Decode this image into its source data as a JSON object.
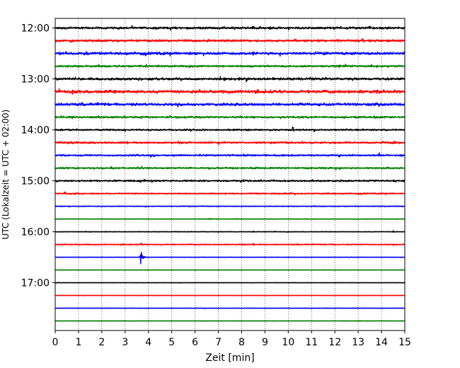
{
  "chart_data": {
    "type": "line",
    "title": "",
    "xlabel": "Zeit  [min]",
    "ylabel": "UTC (Lokalzeit = UTC + 02:00)",
    "xlim": [
      0,
      15
    ],
    "x_ticks": [
      "0",
      "1",
      "2",
      "3",
      "4",
      "5",
      "6",
      "7",
      "8",
      "9",
      "10",
      "11",
      "12",
      "13",
      "14",
      "15"
    ],
    "y_tick_labels": [
      "12:00",
      "13:00",
      "14:00",
      "15:00",
      "16:00",
      "17:00"
    ],
    "grid": "vertical dotted at each minute",
    "trace_interval_minutes": 15,
    "colors": [
      "#000000",
      "#ff0000",
      "#0000ff",
      "#008000"
    ],
    "series": [
      {
        "start": "12:00",
        "color": "#000000",
        "noise": 0.2,
        "events": [
          {
            "t": 8.5,
            "amp": 0.45
          },
          {
            "t": 13.3,
            "amp": 0.15
          }
        ]
      },
      {
        "start": "12:15",
        "color": "#ff0000",
        "noise": 0.2,
        "events": [
          {
            "t": 13.2,
            "amp": 0.4
          }
        ]
      },
      {
        "start": "12:30",
        "color": "#0000ff",
        "noise": 0.25,
        "events": [
          {
            "t": 8.5,
            "amp": 0.3
          }
        ]
      },
      {
        "start": "12:45",
        "color": "#008000",
        "noise": 0.18,
        "events": [
          {
            "t": 3.9,
            "amp": 0.4
          },
          {
            "t": 12.2,
            "amp": 0.25
          },
          {
            "t": 13.8,
            "amp": 0.3
          }
        ]
      },
      {
        "start": "13:00",
        "color": "#000000",
        "noise": 0.22,
        "events": [
          {
            "t": 8.2,
            "amp": 0.45
          }
        ]
      },
      {
        "start": "13:15",
        "color": "#ff0000",
        "noise": 0.28,
        "events": [
          {
            "t": 3.3,
            "amp": 0.3
          },
          {
            "t": 13.1,
            "amp": 0.3
          },
          {
            "t": 14.1,
            "amp": 0.3
          }
        ]
      },
      {
        "start": "13:30",
        "color": "#0000ff",
        "noise": 0.25,
        "events": [
          {
            "t": 6.6,
            "amp": 0.3
          },
          {
            "t": 8.7,
            "amp": 0.4
          },
          {
            "t": 13.8,
            "amp": 0.2
          }
        ]
      },
      {
        "start": "13:45",
        "color": "#008000",
        "noise": 0.18,
        "events": [
          {
            "t": 4.9,
            "amp": 0.4
          },
          {
            "t": 8.5,
            "amp": 0.3
          },
          {
            "t": 13.7,
            "amp": 0.3
          }
        ]
      },
      {
        "start": "14:00",
        "color": "#000000",
        "noise": 0.16,
        "events": [
          {
            "t": 10.2,
            "amp": 0.45
          },
          {
            "t": 12.5,
            "amp": 0.2
          }
        ]
      },
      {
        "start": "14:15",
        "color": "#ff0000",
        "noise": 0.18,
        "events": [
          {
            "t": 3.1,
            "amp": 0.3
          },
          {
            "t": 5.3,
            "amp": 0.25
          },
          {
            "t": 14.0,
            "amp": 0.45
          }
        ]
      },
      {
        "start": "14:30",
        "color": "#0000ff",
        "noise": 0.16,
        "events": [
          {
            "t": 8.5,
            "amp": 0.2
          },
          {
            "t": 13.9,
            "amp": 0.4
          }
        ]
      },
      {
        "start": "14:45",
        "color": "#008000",
        "noise": 0.16,
        "events": [
          {
            "t": 9.9,
            "amp": 0.2
          },
          {
            "t": 11.6,
            "amp": 0.25
          }
        ]
      },
      {
        "start": "15:00",
        "color": "#000000",
        "noise": 0.16,
        "events": [
          {
            "t": 1.8,
            "amp": 0.15
          },
          {
            "t": 13.7,
            "amp": 0.2
          }
        ]
      },
      {
        "start": "15:15",
        "color": "#ff0000",
        "noise": 0.12,
        "events": [
          {
            "t": 0.4,
            "amp": 0.4
          },
          {
            "t": 10.1,
            "amp": 0.2
          },
          {
            "t": 11.7,
            "amp": 0.2
          }
        ]
      },
      {
        "start": "15:30",
        "color": "#0000ff",
        "noise": 0.08,
        "events": [
          {
            "t": 6.3,
            "amp": 0.15
          },
          {
            "t": 8.2,
            "amp": 0.1
          }
        ]
      },
      {
        "start": "15:45",
        "color": "#008000",
        "noise": 0.06,
        "events": [
          {
            "t": 6.6,
            "amp": 0.1
          }
        ]
      },
      {
        "start": "16:00",
        "color": "#000000",
        "noise": 0.06,
        "events": [
          {
            "t": 8.5,
            "amp": 0.1
          },
          {
            "t": 14.5,
            "amp": 0.2
          }
        ]
      },
      {
        "start": "16:15",
        "color": "#ff0000",
        "noise": 0.1,
        "events": [
          {
            "t": 3.7,
            "amp": 0.25
          },
          {
            "t": 8.5,
            "amp": 0.2
          }
        ]
      },
      {
        "start": "16:30",
        "color": "#0000ff",
        "noise": 0.04,
        "events": [
          {
            "t": 3.65,
            "amp": 1.75
          }
        ]
      },
      {
        "start": "16:45",
        "color": "#008000",
        "noise": 0.04,
        "events": []
      },
      {
        "start": "17:00",
        "color": "#000000",
        "noise": 0.04,
        "events": []
      },
      {
        "start": "17:15",
        "color": "#ff0000",
        "noise": 0.03,
        "events": []
      },
      {
        "start": "17:30",
        "color": "#0000ff",
        "noise": 0.04,
        "events": []
      },
      {
        "start": "17:45",
        "color": "#008000",
        "noise": 0.04,
        "events": []
      }
    ]
  }
}
